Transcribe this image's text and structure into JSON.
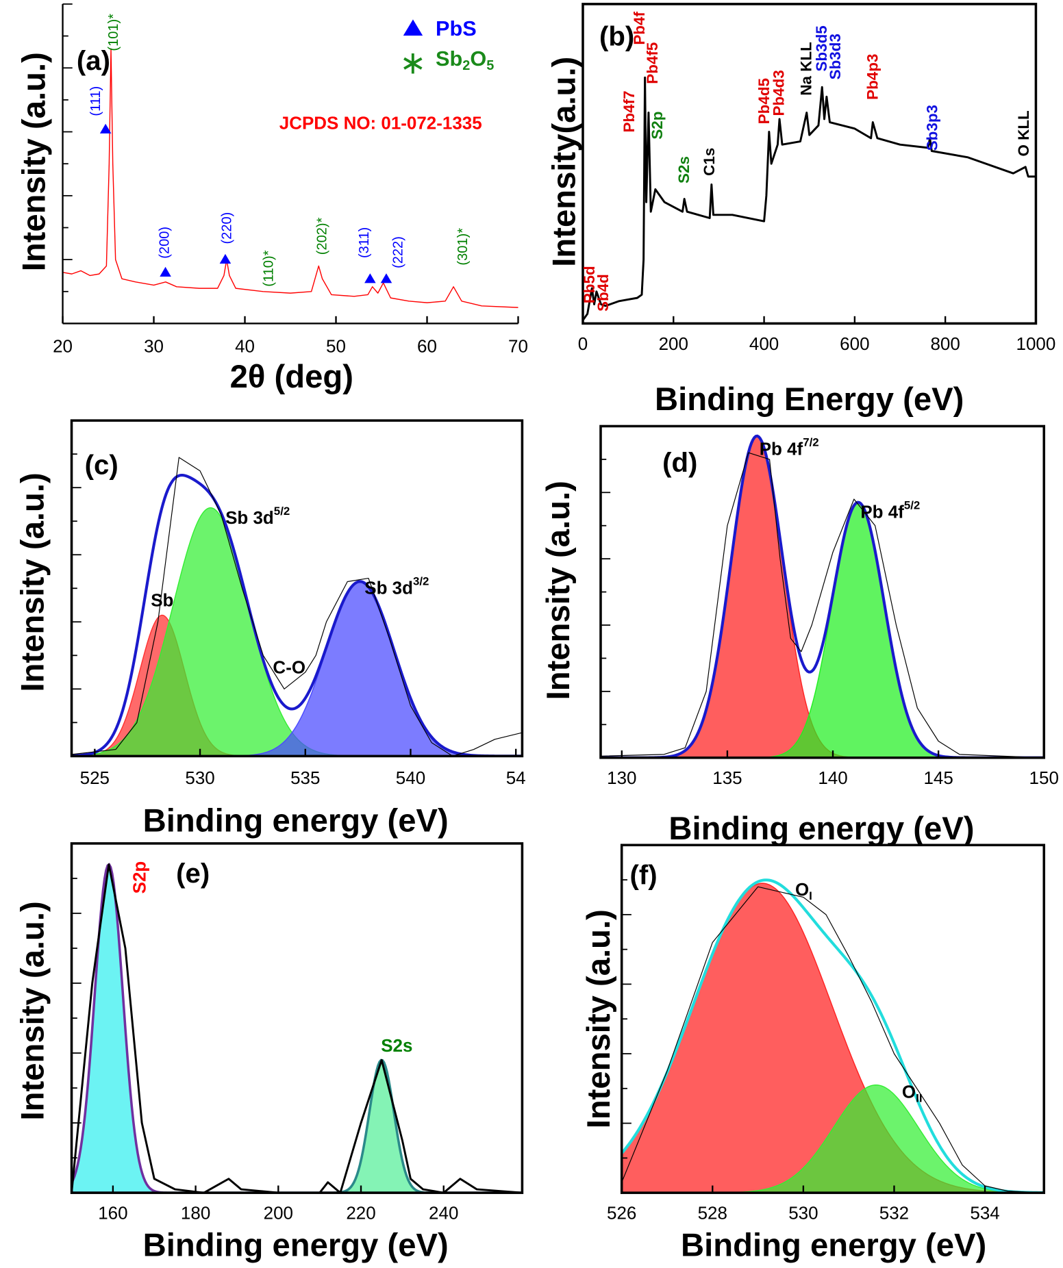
{
  "chart_data": [
    {
      "type": "line",
      "panel_label": "(a)",
      "xlabel": "2θ (deg)",
      "ylabel": "Intensity (a.u.)",
      "xlim": [
        20,
        70
      ],
      "xticks": [
        20,
        30,
        40,
        50,
        60,
        70
      ],
      "ylim": [
        0,
        100
      ],
      "yticks": [
        10,
        20,
        30,
        40,
        50,
        60,
        70,
        80,
        90,
        100
      ],
      "color": "#ff0000",
      "x": [
        20,
        21,
        22,
        23,
        24,
        24.8,
        25.1,
        25.3,
        25.5,
        25.8,
        26.5,
        28,
        30,
        31.3,
        32.5,
        35,
        37,
        37.7,
        38,
        38.3,
        39,
        42,
        45,
        47.3,
        47.8,
        48.1,
        48.5,
        49.5,
        52,
        53.5,
        54,
        54.6,
        55.2,
        56,
        58,
        60,
        62,
        62.9,
        63.8,
        66,
        70
      ],
      "values": [
        16,
        15.5,
        16.5,
        15,
        15.5,
        18,
        50,
        86,
        50,
        20,
        14,
        13,
        12,
        13,
        11.5,
        11,
        11,
        15,
        20,
        15,
        11,
        10,
        9.5,
        10,
        15,
        18,
        14,
        9,
        8.5,
        9,
        11.5,
        9.5,
        12.7,
        8,
        7,
        6.5,
        7,
        11.5,
        7,
        5.5,
        5
      ],
      "legend": [
        {
          "name": "PbS",
          "color": "#0000ff",
          "marker": "triangle"
        },
        {
          "name": "Sb2O5",
          "color": "#1a8a1a",
          "marker": "asterisk"
        }
      ],
      "note": "JCPDS NO: 01-072-1335",
      "note_color": "#ff0000",
      "annotations": [
        {
          "text": "(111)",
          "color": "#0000ff"
        },
        {
          "text": "(101)*",
          "color": "#008000"
        },
        {
          "text": "(200)",
          "color": "#0000ff"
        },
        {
          "text": "(220)",
          "color": "#0000ff"
        },
        {
          "text": "(110)*",
          "color": "#008000"
        },
        {
          "text": "(202)*",
          "color": "#008000"
        },
        {
          "text": "(311)",
          "color": "#0000ff"
        },
        {
          "text": "(222)",
          "color": "#0000ff"
        },
        {
          "text": "(301)*",
          "color": "#008000"
        }
      ]
    },
    {
      "type": "line",
      "panel_label": "(b)",
      "xlabel": "Binding Energy (eV)",
      "ylabel": "Intensity(a.u.)",
      "xlim": [
        0,
        1000
      ],
      "xticks": [
        0,
        200,
        400,
        600,
        800,
        1000
      ],
      "ylim": [
        0,
        100
      ],
      "color": "#000000",
      "x": [
        0,
        10,
        20,
        25,
        30,
        40,
        50,
        80,
        100,
        120,
        130,
        134,
        137,
        140,
        145,
        150,
        160,
        180,
        220,
        224,
        230,
        280,
        284,
        288,
        330,
        400,
        405,
        411,
        416,
        430,
        434,
        440,
        480,
        494,
        500,
        520,
        528,
        533,
        538,
        545,
        600,
        636,
        640,
        650,
        700,
        762,
        766,
        770,
        850,
        950,
        977,
        983,
        1000
      ],
      "values": [
        1,
        3,
        11,
        6,
        10,
        6,
        5.5,
        7,
        7.5,
        8,
        9,
        20,
        77,
        38,
        66,
        35,
        42,
        38,
        35,
        39,
        35,
        33,
        43.5,
        34,
        34,
        32,
        40,
        60,
        50,
        56,
        64,
        56,
        57,
        66,
        59,
        62,
        74,
        64,
        71,
        63,
        61,
        58,
        63,
        58,
        56,
        55,
        58,
        54,
        52,
        47,
        49,
        46,
        46
      ],
      "annotations": [
        {
          "text": "Pb5d",
          "color": "#e00000"
        },
        {
          "text": "Sb4d",
          "color": "#e00000"
        },
        {
          "text": "Pb4f7",
          "color": "#e00000"
        },
        {
          "text": "Pb4f",
          "color": "#e00000"
        },
        {
          "text": "Pb4f5",
          "color": "#e00000"
        },
        {
          "text": "S2p",
          "color": "#108010"
        },
        {
          "text": "S2s",
          "color": "#108010"
        },
        {
          "text": "C1s",
          "color": "#000000"
        },
        {
          "text": "Pb4d5",
          "color": "#e00000"
        },
        {
          "text": "Pb4d3",
          "color": "#e00000"
        },
        {
          "text": "Na KLL",
          "color": "#000000"
        },
        {
          "text": "Sb3d5",
          "color": "#1010e0"
        },
        {
          "text": "Sb3d3",
          "color": "#1010e0"
        },
        {
          "text": "Pb4p3",
          "color": "#e00000"
        },
        {
          "text": "Sb3p3",
          "color": "#1010e0"
        },
        {
          "text": "O KLL",
          "color": "#000000"
        }
      ]
    },
    {
      "type": "peakfit",
      "panel_label": "(c)",
      "xlabel": "Binding energy (eV)",
      "ylabel": "Intensity (a.u.)",
      "xlim": [
        523.9,
        545.3
      ],
      "xticks": [
        525,
        530,
        535,
        540,
        {
          "value": 545,
          "label": "54"
        }
      ],
      "ylim": [
        0,
        100
      ],
      "yticks": [
        10,
        20,
        30,
        40,
        50,
        60,
        70,
        80,
        90
      ],
      "color": "#000000",
      "fit_color": "#1a1acc",
      "x": [
        523.9,
        526,
        527,
        528,
        529,
        530,
        531,
        532,
        533,
        534,
        535,
        535.5,
        536,
        537,
        538,
        539,
        540,
        541,
        542,
        543,
        544,
        545.3
      ],
      "values": [
        0.5,
        2,
        10,
        40,
        89,
        85,
        72,
        50,
        30,
        20,
        25,
        30,
        40,
        52,
        53,
        35,
        15,
        4,
        0,
        2,
        5,
        7
      ],
      "series": [
        {
          "name": "Sb",
          "color": "#ff3030",
          "center": 528.2,
          "height": 42,
          "fwhm": 2.5
        },
        {
          "name": "Sb 3d5/2",
          "color": "#33ee33",
          "center": 530.5,
          "height": 74,
          "fwhm": 4.2
        },
        {
          "name": "Sb 3d3/2",
          "color": "#4a4aff",
          "center": 537.6,
          "height": 52,
          "fwhm": 3.8
        }
      ],
      "annotations": [
        {
          "text": "C-O",
          "color": "#000000"
        }
      ]
    },
    {
      "type": "peakfit",
      "panel_label": "(d)",
      "xlabel": "Binding energy (eV)",
      "ylabel": "Intensity (a.u.)",
      "xlim": [
        129,
        150
      ],
      "xticks": [
        130,
        135,
        140,
        145,
        150
      ],
      "ylim": [
        0,
        100
      ],
      "yticks": [
        10,
        20,
        30,
        40,
        50,
        60,
        70,
        80,
        90
      ],
      "color": "#000000",
      "fit_color": "#1a1acc",
      "x": [
        129,
        132,
        133,
        134,
        135,
        136,
        137,
        137.5,
        138,
        138.5,
        139,
        140,
        141,
        142,
        143,
        144,
        145,
        146,
        150
      ],
      "values": [
        0.5,
        1,
        3,
        20,
        70,
        92,
        90,
        60,
        36,
        32,
        40,
        62,
        78,
        70,
        40,
        15,
        5,
        1,
        0
      ],
      "series": [
        {
          "name": "Pb 4f7/2",
          "color": "#ff2020",
          "center": 136.4,
          "height": 97,
          "fwhm": 2.9
        },
        {
          "name": "Pb 4f5/2",
          "color": "#22ee22",
          "center": 141.2,
          "height": 77,
          "fwhm": 2.9
        }
      ]
    },
    {
      "type": "peakfit",
      "panel_label": "(e)",
      "xlabel": "Binding energy (eV)",
      "ylabel": "Intensity (a.u.)",
      "xlim": [
        150,
        259
      ],
      "xticks": [
        160,
        180,
        200,
        220,
        240
      ],
      "ylim": [
        0,
        100
      ],
      "yticks": [
        10,
        20,
        30,
        40,
        50,
        60,
        70,
        80,
        90
      ],
      "color": "#000000",
      "x": [
        150,
        155,
        159,
        163,
        167,
        170,
        175,
        182,
        185,
        188,
        191,
        200,
        210,
        212,
        215,
        220,
        225,
        230,
        232,
        235,
        240,
        244,
        248,
        259
      ],
      "values": [
        0,
        60,
        94,
        70,
        20,
        4,
        1,
        0,
        2,
        4,
        1,
        0,
        0,
        3,
        0,
        20,
        38,
        15,
        4,
        1,
        0,
        4,
        1,
        0
      ],
      "series": [
        {
          "name": "S2p",
          "color": "#33eeee",
          "line_color": "#7030a0",
          "label_color": "#ff0000",
          "center": 159,
          "height": 94,
          "fwhm": 8
        },
        {
          "name": "S2s",
          "color": "#55ee99",
          "line_color": "#2a8a8a",
          "label_color": "#008000",
          "center": 225,
          "height": 38,
          "fwhm": 7
        }
      ]
    },
    {
      "type": "peakfit",
      "panel_label": "(f)",
      "xlabel": "Binding energy (eV)",
      "ylabel": "Intensity (a.u.)",
      "xlim": [
        526,
        535.3
      ],
      "xticks": [
        526,
        528,
        530,
        532,
        534
      ],
      "ylim": [
        0,
        100
      ],
      "yticks": [
        10,
        20,
        30,
        40,
        50,
        60,
        70,
        80,
        90
      ],
      "color": "#000000",
      "fit_color": "#22dddd",
      "x": [
        526,
        527,
        528,
        529,
        530,
        530.5,
        531,
        531.5,
        532,
        533,
        533.5,
        534,
        534.5,
        535.3
      ],
      "values": [
        3,
        35,
        72,
        88,
        85,
        80,
        68,
        55,
        40,
        20,
        8,
        2,
        0.5,
        0
      ],
      "series": [
        {
          "name": "OI",
          "color": "#ff2020",
          "center": 529.1,
          "height": 89,
          "fwhm": 3.6
        },
        {
          "name": "OII",
          "color": "#33ee33",
          "center": 531.6,
          "height": 31,
          "fwhm": 2.2
        }
      ]
    }
  ]
}
